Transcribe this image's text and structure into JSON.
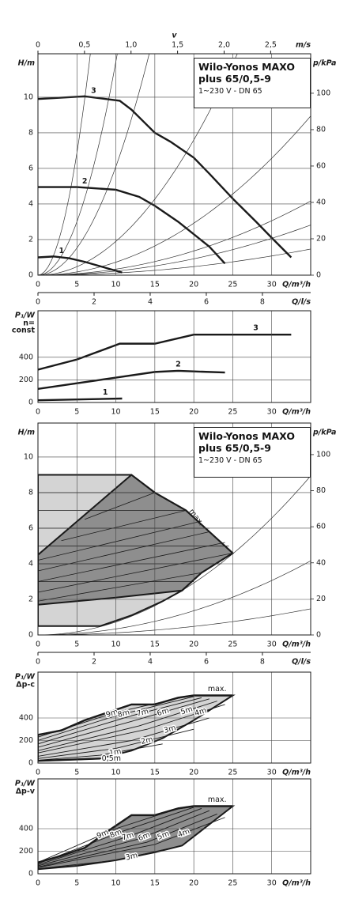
{
  "chart_data": [
    {
      "type": "line",
      "title": "Wilo-Yonos MAXO plus 65/0,5-9",
      "subtitle": "1~230 V - DN 65",
      "xlabel": "Q/m³/h",
      "ylabel": "H/m",
      "y2label": "p/kPa",
      "xlim": [
        0,
        35
      ],
      "xticks": [
        0,
        5,
        10,
        15,
        20,
        25,
        30
      ],
      "ylim": [
        0,
        12.44
      ],
      "yticks": [
        0,
        2,
        4,
        6,
        8,
        10
      ],
      "y2lim": [
        0,
        121.7
      ],
      "y2ticks": [
        0,
        20,
        40,
        60,
        80,
        100
      ],
      "top_axis": {
        "label": "v",
        "unit": "m/s",
        "lim": [
          0,
          2.93
        ],
        "ticks": [
          0,
          {
            "value": 0.5,
            "label": "0,5"
          },
          {
            "value": 1.0,
            "label": "1,0"
          },
          {
            "value": 1.5,
            "label": "1,5"
          },
          {
            "value": 2.0,
            "label": "2,0"
          },
          {
            "value": 2.5,
            "label": "2,5"
          }
        ]
      },
      "bottom_axis2": {
        "label": "Q/l/s",
        "lim": [
          0,
          9.72
        ],
        "ticks": [
          0,
          2,
          4,
          6,
          8
        ]
      },
      "system_curves": [
        0.275,
        0.12,
        0.061,
        0.019,
        0.0073,
        0.0034,
        0.0023,
        0.0012
      ],
      "grid": true,
      "series": [
        {
          "name": "1",
          "color": "#1a1a1a",
          "x": [
            0,
            2,
            4,
            6,
            8,
            10.8
          ],
          "values": [
            1.0,
            1.05,
            0.95,
            0.75,
            0.5,
            0.15
          ]
        },
        {
          "name": "2",
          "color": "#1a1a1a",
          "x": [
            0,
            5,
            10,
            13,
            15,
            18,
            20,
            22,
            24
          ],
          "values": [
            4.95,
            4.95,
            4.8,
            4.4,
            3.9,
            3.0,
            2.3,
            1.6,
            0.65
          ]
        },
        {
          "name": "3",
          "color": "#1a1a1a",
          "x": [
            0,
            2,
            6,
            10.5,
            12,
            15,
            17,
            20,
            22,
            25,
            28,
            30,
            32.5
          ],
          "values": [
            9.9,
            9.95,
            10.05,
            9.8,
            9.3,
            8.0,
            7.5,
            6.6,
            5.7,
            4.3,
            3.0,
            2.1,
            1.0
          ]
        }
      ]
    },
    {
      "type": "line",
      "xlabel": "Q/m³/h",
      "ylabel": "P₁/W",
      "ylabel_note": [
        "n=",
        "const"
      ],
      "xlim": [
        0,
        35
      ],
      "xticks": [
        0,
        5,
        10,
        15,
        20,
        25,
        30
      ],
      "ylim": [
        0,
        811
      ],
      "yticks": [
        0,
        200,
        400
      ],
      "grid": true,
      "series": [
        {
          "name": "1",
          "color": "#1a1a1a",
          "x": [
            0,
            10.8
          ],
          "values": [
            20,
            35
          ]
        },
        {
          "name": "2",
          "color": "#1a1a1a",
          "x": [
            0,
            5,
            10,
            15,
            18,
            24
          ],
          "values": [
            120,
            170,
            220,
            270,
            280,
            265
          ]
        },
        {
          "name": "3",
          "color": "#1a1a1a",
          "x": [
            0,
            5,
            10.5,
            15,
            20,
            32.5
          ],
          "values": [
            290,
            380,
            520,
            520,
            600,
            600
          ]
        }
      ]
    },
    {
      "type": "line",
      "title": "Wilo-Yonos MAXO plus 65/0,5-9",
      "subtitle": "1~230 V - DN 65",
      "xlabel": "Q/m³/h",
      "ylabel": "H/m",
      "y2label": "p/kPa",
      "annotation": "max.",
      "xlim": [
        0,
        35
      ],
      "xticks": [
        0,
        5,
        10,
        15,
        20,
        25,
        30
      ],
      "ylim": [
        0,
        11.91
      ],
      "yticks": [
        0,
        2,
        4,
        6,
        8,
        10
      ],
      "y2lim": [
        0,
        117.5
      ],
      "y2ticks": [
        0,
        20,
        40,
        60,
        80,
        100
      ],
      "bottom_axis2": {
        "label": "Q/l/s",
        "lim": [
          0,
          9.72
        ],
        "ticks": [
          0,
          2,
          4,
          6,
          8
        ]
      },
      "system_curves": [
        0.0073,
        0.0034,
        0.0012
      ],
      "grid": true,
      "regions": [
        {
          "color": "#d4d4d4",
          "x": [
            0,
            8,
            12,
            16,
            18.5,
            21,
            25,
            19,
            15,
            12,
            0
          ],
          "values": [
            0.5,
            0.5,
            1.1,
            1.9,
            2.5,
            3.5,
            4.6,
            7,
            8,
            9,
            9
          ]
        },
        {
          "color": "#8e8e8e",
          "x": [
            0,
            5,
            10,
            18.5,
            21,
            25,
            19,
            15,
            12,
            0
          ],
          "values": [
            1.7,
            1.9,
            2.1,
            2.5,
            3.5,
            4.6,
            7,
            8,
            9,
            4.5
          ]
        }
      ],
      "lines": [
        {
          "x": [
            0,
            20
          ],
          "values": [
            3,
            3
          ]
        },
        {
          "x": [
            0,
            23.5
          ],
          "values": [
            4,
            4
          ]
        },
        {
          "x": [
            0,
            24.5
          ],
          "values": [
            5,
            5
          ]
        },
        {
          "x": [
            0,
            22
          ],
          "values": [
            6,
            6
          ]
        },
        {
          "x": [
            0,
            19
          ],
          "values": [
            7,
            7
          ]
        },
        {
          "x": [
            0,
            15
          ],
          "values": [
            8,
            8
          ]
        },
        {
          "x": [
            0,
            21
          ],
          "values": [
            1.9,
            3.5
          ]
        },
        {
          "x": [
            0,
            25
          ],
          "values": [
            2.4,
            4.6
          ]
        },
        {
          "x": [
            0,
            24
          ],
          "values": [
            3,
            5.2
          ]
        },
        {
          "x": [
            0,
            22
          ],
          "values": [
            3.6,
            5.8
          ]
        },
        {
          "x": [
            0,
            21
          ],
          "values": [
            4.2,
            6.4
          ]
        },
        {
          "x": [
            3,
            19
          ],
          "values": [
            5.3,
            7
          ]
        },
        {
          "x": [
            6,
            15
          ],
          "values": [
            6.5,
            8
          ]
        }
      ],
      "series": []
    },
    {
      "type": "line",
      "xlabel": "Q/m³/h",
      "ylabel": "P₁/W",
      "ylabel_note": [
        "Δp-c"
      ],
      "xlim": [
        0,
        35
      ],
      "xticks": [
        0,
        5,
        10,
        15,
        20,
        25,
        30
      ],
      "ylim": [
        0,
        807
      ],
      "yticks": [
        0,
        200,
        400
      ],
      "grid": true,
      "regions": [
        {
          "color": "#d4d4d4",
          "x": [
            0,
            3,
            6,
            9,
            12,
            15,
            18,
            20,
            25,
            20,
            16,
            12,
            8,
            0
          ],
          "values": [
            250,
            290,
            380,
            450,
            520,
            520,
            580,
            600,
            600,
            380,
            220,
            110,
            40,
            20
          ]
        }
      ],
      "series": [
        {
          "name": "max.",
          "color": "#1a1a1a",
          "x": [
            0,
            3,
            6,
            9,
            12,
            15,
            18,
            20,
            25
          ],
          "values": [
            250,
            290,
            380,
            450,
            520,
            520,
            580,
            600,
            600
          ]
        },
        {
          "name": "9m",
          "color": "#1a1a1a",
          "x": [
            0,
            10,
            19
          ],
          "values": [
            230,
            450,
            590
          ]
        },
        {
          "name": "8m",
          "color": "#1a1a1a",
          "x": [
            0,
            10,
            20
          ],
          "values": [
            200,
            420,
            590
          ]
        },
        {
          "name": "7m",
          "color": "#1a1a1a",
          "x": [
            0,
            12,
            21
          ],
          "values": [
            170,
            420,
            580
          ]
        },
        {
          "name": "6m",
          "color": "#1a1a1a",
          "x": [
            0,
            12,
            22
          ],
          "values": [
            140,
            370,
            570
          ]
        },
        {
          "name": "5m",
          "color": "#1a1a1a",
          "x": [
            0,
            13,
            23
          ],
          "values": [
            110,
            330,
            550
          ]
        },
        {
          "name": "4m",
          "color": "#1a1a1a",
          "x": [
            0,
            14,
            24
          ],
          "values": [
            90,
            300,
            520
          ]
        },
        {
          "name": "3m",
          "color": "#1a1a1a",
          "x": [
            0,
            12,
            22
          ],
          "values": [
            60,
            200,
            400
          ]
        },
        {
          "name": "2m",
          "color": "#1a1a1a",
          "x": [
            0,
            10,
            20
          ],
          "values": [
            40,
            130,
            300
          ]
        },
        {
          "name": "1m",
          "color": "#1a1a1a",
          "x": [
            0,
            8,
            16
          ],
          "values": [
            25,
            70,
            170
          ]
        },
        {
          "name": "0,5m",
          "color": "#1a1a1a",
          "x": [
            0,
            8
          ],
          "values": [
            20,
            40
          ]
        }
      ]
    },
    {
      "type": "line",
      "xlabel": "Q/m³/h",
      "ylabel": "P₁/W",
      "ylabel_note": [
        "Δp-v"
      ],
      "xlim": [
        0,
        35
      ],
      "xticks": [
        0,
        5,
        10,
        15,
        20,
        25,
        30
      ],
      "ylim": [
        0,
        842
      ],
      "yticks": [
        0,
        200,
        400
      ],
      "grid": true,
      "regions": [
        {
          "color": "#8e8e8e",
          "x": [
            0,
            3,
            6,
            9,
            12,
            15,
            18,
            20,
            25,
            18.5,
            15,
            10,
            5,
            0
          ],
          "values": [
            100,
            160,
            230,
            380,
            520,
            520,
            580,
            600,
            600,
            250,
            190,
            120,
            70,
            40
          ]
        }
      ],
      "series": [
        {
          "name": "max.",
          "color": "#1a1a1a",
          "x": [
            0,
            3,
            6,
            9,
            12,
            15,
            18,
            20,
            25
          ],
          "values": [
            100,
            160,
            230,
            380,
            520,
            520,
            580,
            600,
            600
          ]
        },
        {
          "name": "9m",
          "color": "#1a1a1a",
          "x": [
            0,
            10,
            18.5
          ],
          "values": [
            100,
            400,
            590
          ]
        },
        {
          "name": "8m",
          "color": "#1a1a1a",
          "x": [
            0,
            11,
            20
          ],
          "values": [
            90,
            380,
            590
          ]
        },
        {
          "name": "7m",
          "color": "#1a1a1a",
          "x": [
            0,
            12,
            21
          ],
          "values": [
            80,
            340,
            580
          ]
        },
        {
          "name": "6m",
          "color": "#1a1a1a",
          "x": [
            0,
            13,
            22
          ],
          "values": [
            70,
            310,
            560
          ]
        },
        {
          "name": "5m",
          "color": "#1a1a1a",
          "x": [
            0,
            14,
            23
          ],
          "values": [
            60,
            280,
            530
          ]
        },
        {
          "name": "4m",
          "color": "#1a1a1a",
          "x": [
            0,
            15,
            24
          ],
          "values": [
            55,
            260,
            500
          ]
        },
        {
          "name": "3m",
          "color": "#1a1a1a",
          "x": [
            0,
            10,
            18.5
          ],
          "values": [
            45,
            120,
            250
          ]
        }
      ]
    }
  ]
}
